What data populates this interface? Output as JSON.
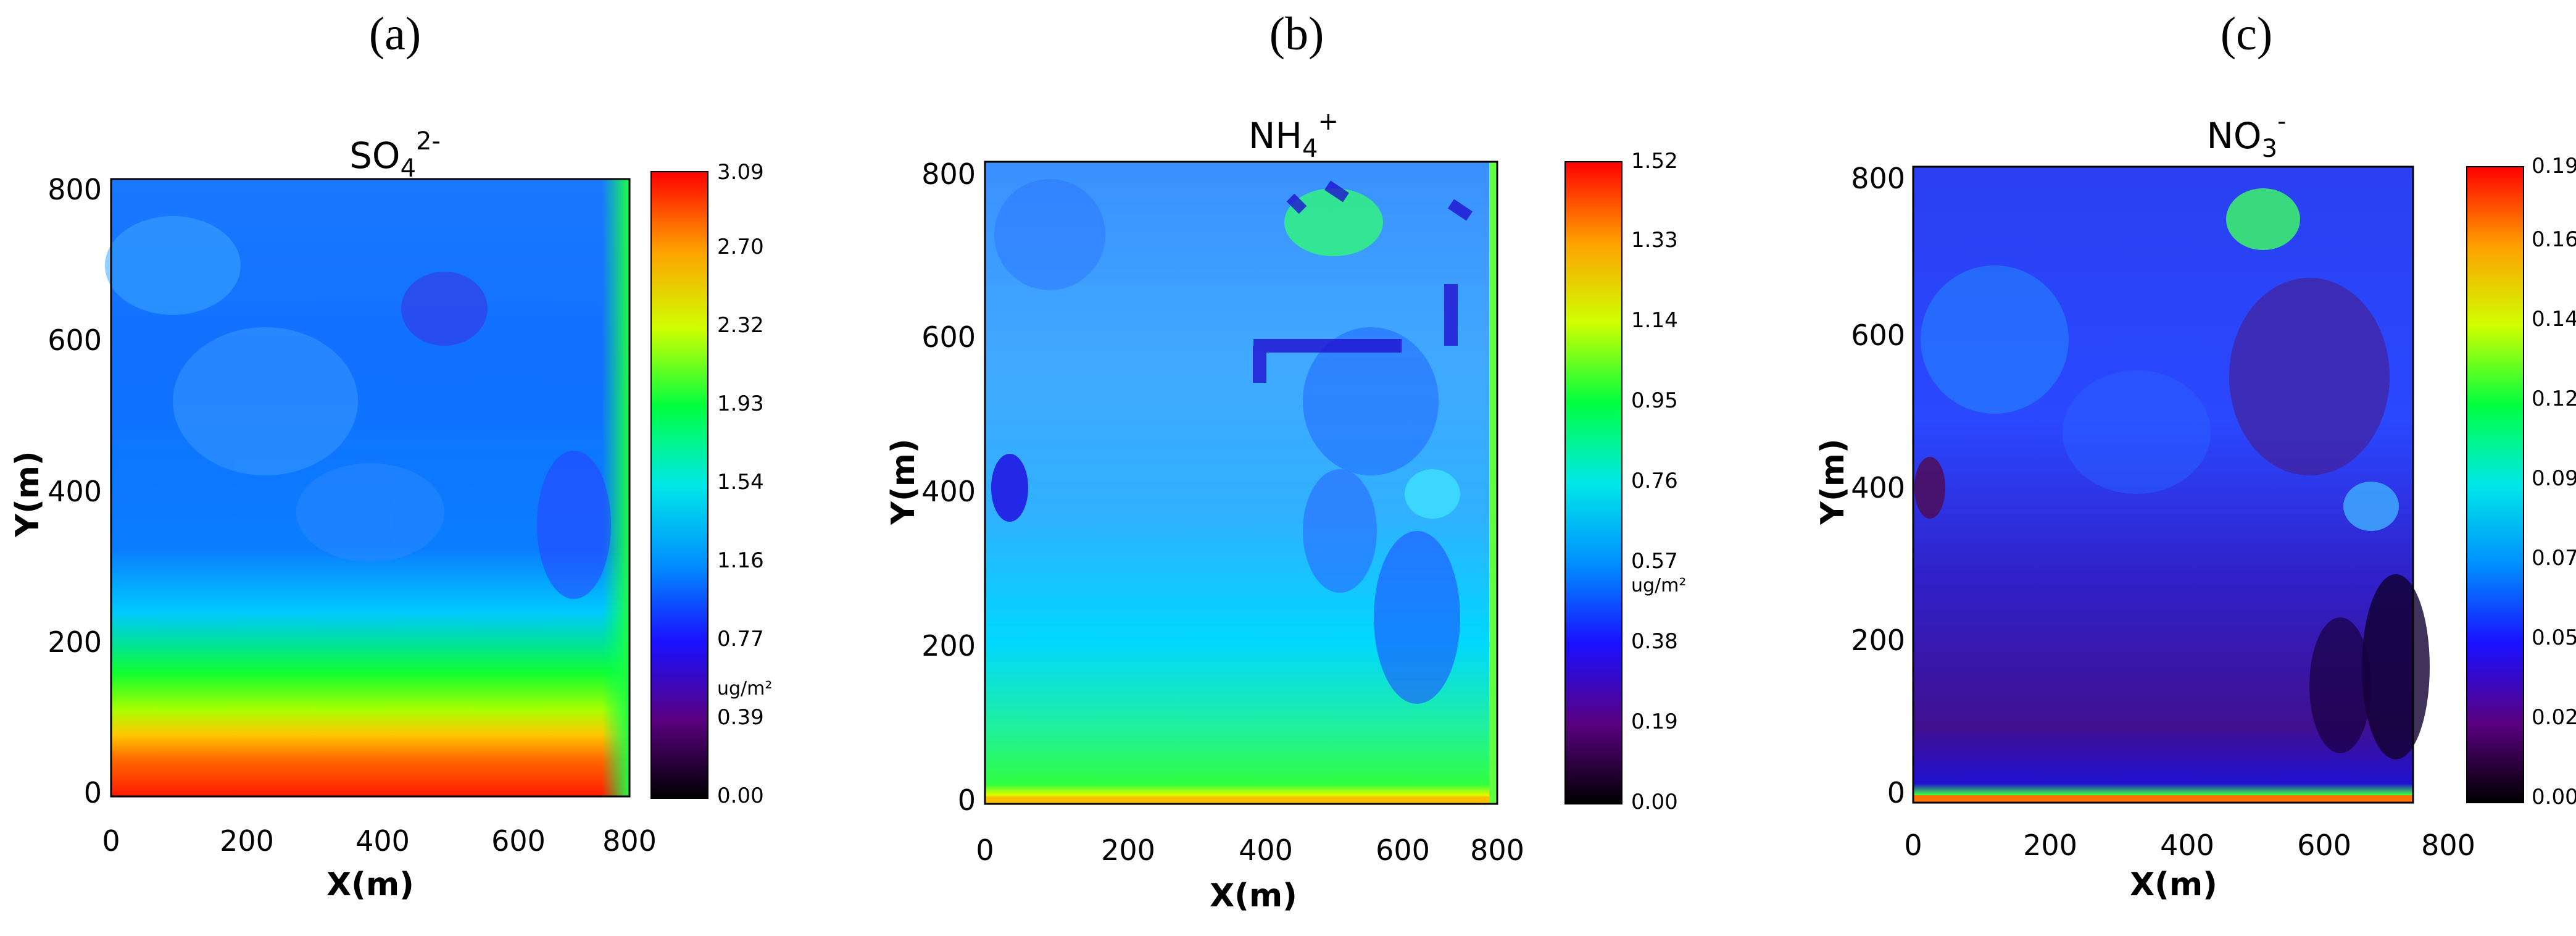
{
  "panels": [
    {
      "label": "(a)",
      "title": "SO4 2-",
      "title_main": "SO",
      "title_sub": "4",
      "title_sup": "2-",
      "unit": "ug/m²",
      "colorbar_ticks": [
        "0.00",
        "0.39",
        "0.77",
        "1.16",
        "1.54",
        "1.93",
        "2.32",
        "2.70",
        "3.09"
      ],
      "x_ticks": [
        "0",
        "200",
        "400",
        "600",
        "800"
      ],
      "y_ticks": [
        "0",
        "200",
        "400",
        "600",
        "800"
      ],
      "xlabel": "X(m)",
      "ylabel": "Y(m)"
    },
    {
      "label": "(b)",
      "title": "NH4 +",
      "title_main": "NH",
      "title_sub": "4",
      "title_sup": "+",
      "unit": "ug/m²",
      "colorbar_ticks": [
        "0.00",
        "0.19",
        "0.38",
        "0.57",
        "0.76",
        "0.95",
        "1.14",
        "1.33",
        "1.52"
      ],
      "x_ticks": [
        "0",
        "200",
        "400",
        "600",
        "800"
      ],
      "y_ticks": [
        "0",
        "200",
        "400",
        "600",
        "800"
      ],
      "xlabel": "X(m)",
      "ylabel": "Y(m)"
    },
    {
      "label": "(c)",
      "title": "NO3 -",
      "title_main": "NO",
      "title_sub": "3",
      "title_sup": "-",
      "unit": "",
      "colorbar_ticks": [
        "0.00",
        "0.02",
        "0.05",
        "0.07",
        "0.09",
        "0.12",
        "0.14",
        "0.16",
        "0.19"
      ],
      "x_ticks": [
        "0",
        "200",
        "400",
        "600",
        "800"
      ],
      "y_ticks": [
        "0",
        "200",
        "400",
        "600",
        "800"
      ],
      "xlabel": "X(m)",
      "ylabel": "Y(m)"
    }
  ],
  "chart_data": [
    {
      "type": "heatmap",
      "title": "SO4 2-",
      "xlabel": "X(m)",
      "ylabel": "Y(m)",
      "xlim": [
        0,
        800
      ],
      "ylim": [
        0,
        800
      ],
      "colorbar": {
        "unit": "ug/m²",
        "range": [
          0.0,
          3.09
        ],
        "ticks": [
          0.0,
          0.39,
          0.77,
          1.16,
          1.54,
          1.93,
          2.32,
          2.7,
          3.09
        ]
      },
      "colormap": [
        "#000000",
        "#5a0080",
        "#1a10ff",
        "#0090ff",
        "#00e8e8",
        "#00ff40",
        "#d0ff00",
        "#ffa000",
        "#ff0000"
      ],
      "profile_y_value": [
        {
          "y": 0,
          "value": 2.9
        },
        {
          "y": 50,
          "value": 2.55
        },
        {
          "y": 100,
          "value": 1.95
        },
        {
          "y": 150,
          "value": 1.8
        },
        {
          "y": 200,
          "value": 1.3
        },
        {
          "y": 250,
          "value": 1.0
        },
        {
          "y": 400,
          "value": 0.85
        },
        {
          "y": 600,
          "value": 0.85
        },
        {
          "y": 800,
          "value": 0.9
        }
      ]
    },
    {
      "type": "heatmap",
      "title": "NH4 +",
      "xlabel": "X(m)",
      "ylabel": "Y(m)",
      "xlim": [
        0,
        800
      ],
      "ylim": [
        0,
        800
      ],
      "colorbar": {
        "unit": "ug/m²",
        "range": [
          0.0,
          1.52
        ],
        "ticks": [
          0.0,
          0.19,
          0.38,
          0.57,
          0.76,
          0.95,
          1.14,
          1.33,
          1.52
        ]
      },
      "colormap": [
        "#000000",
        "#5a0080",
        "#1a10ff",
        "#0090ff",
        "#00e8e8",
        "#00ff40",
        "#d0ff00",
        "#ffa000",
        "#ff0000"
      ],
      "profile_y_value": [
        {
          "y": 0,
          "value": 1.1
        },
        {
          "y": 20,
          "value": 0.85
        },
        {
          "y": 100,
          "value": 0.72
        },
        {
          "y": 200,
          "value": 0.6
        },
        {
          "y": 400,
          "value": 0.5
        },
        {
          "y": 600,
          "value": 0.5
        },
        {
          "y": 800,
          "value": 0.45
        }
      ]
    },
    {
      "type": "heatmap",
      "title": "NO3 -",
      "xlabel": "X(m)",
      "ylabel": "Y(m)",
      "xlim": [
        0,
        800
      ],
      "ylim": [
        0,
        800
      ],
      "colorbar": {
        "range": [
          0.0,
          0.19
        ],
        "ticks": [
          0.0,
          0.02,
          0.05,
          0.07,
          0.09,
          0.12,
          0.14,
          0.16,
          0.19
        ]
      },
      "colormap": [
        "#000000",
        "#5a0080",
        "#1a10ff",
        "#0090ff",
        "#00e8e8",
        "#00ff40",
        "#d0ff00",
        "#ffa000",
        "#ff0000"
      ],
      "profile_y_value": [
        {
          "y": 0,
          "value": 0.12
        },
        {
          "y": 20,
          "value": 0.05
        },
        {
          "y": 100,
          "value": 0.03
        },
        {
          "y": 200,
          "value": 0.035
        },
        {
          "y": 400,
          "value": 0.045
        },
        {
          "y": 600,
          "value": 0.04
        },
        {
          "y": 800,
          "value": 0.04
        }
      ]
    }
  ]
}
